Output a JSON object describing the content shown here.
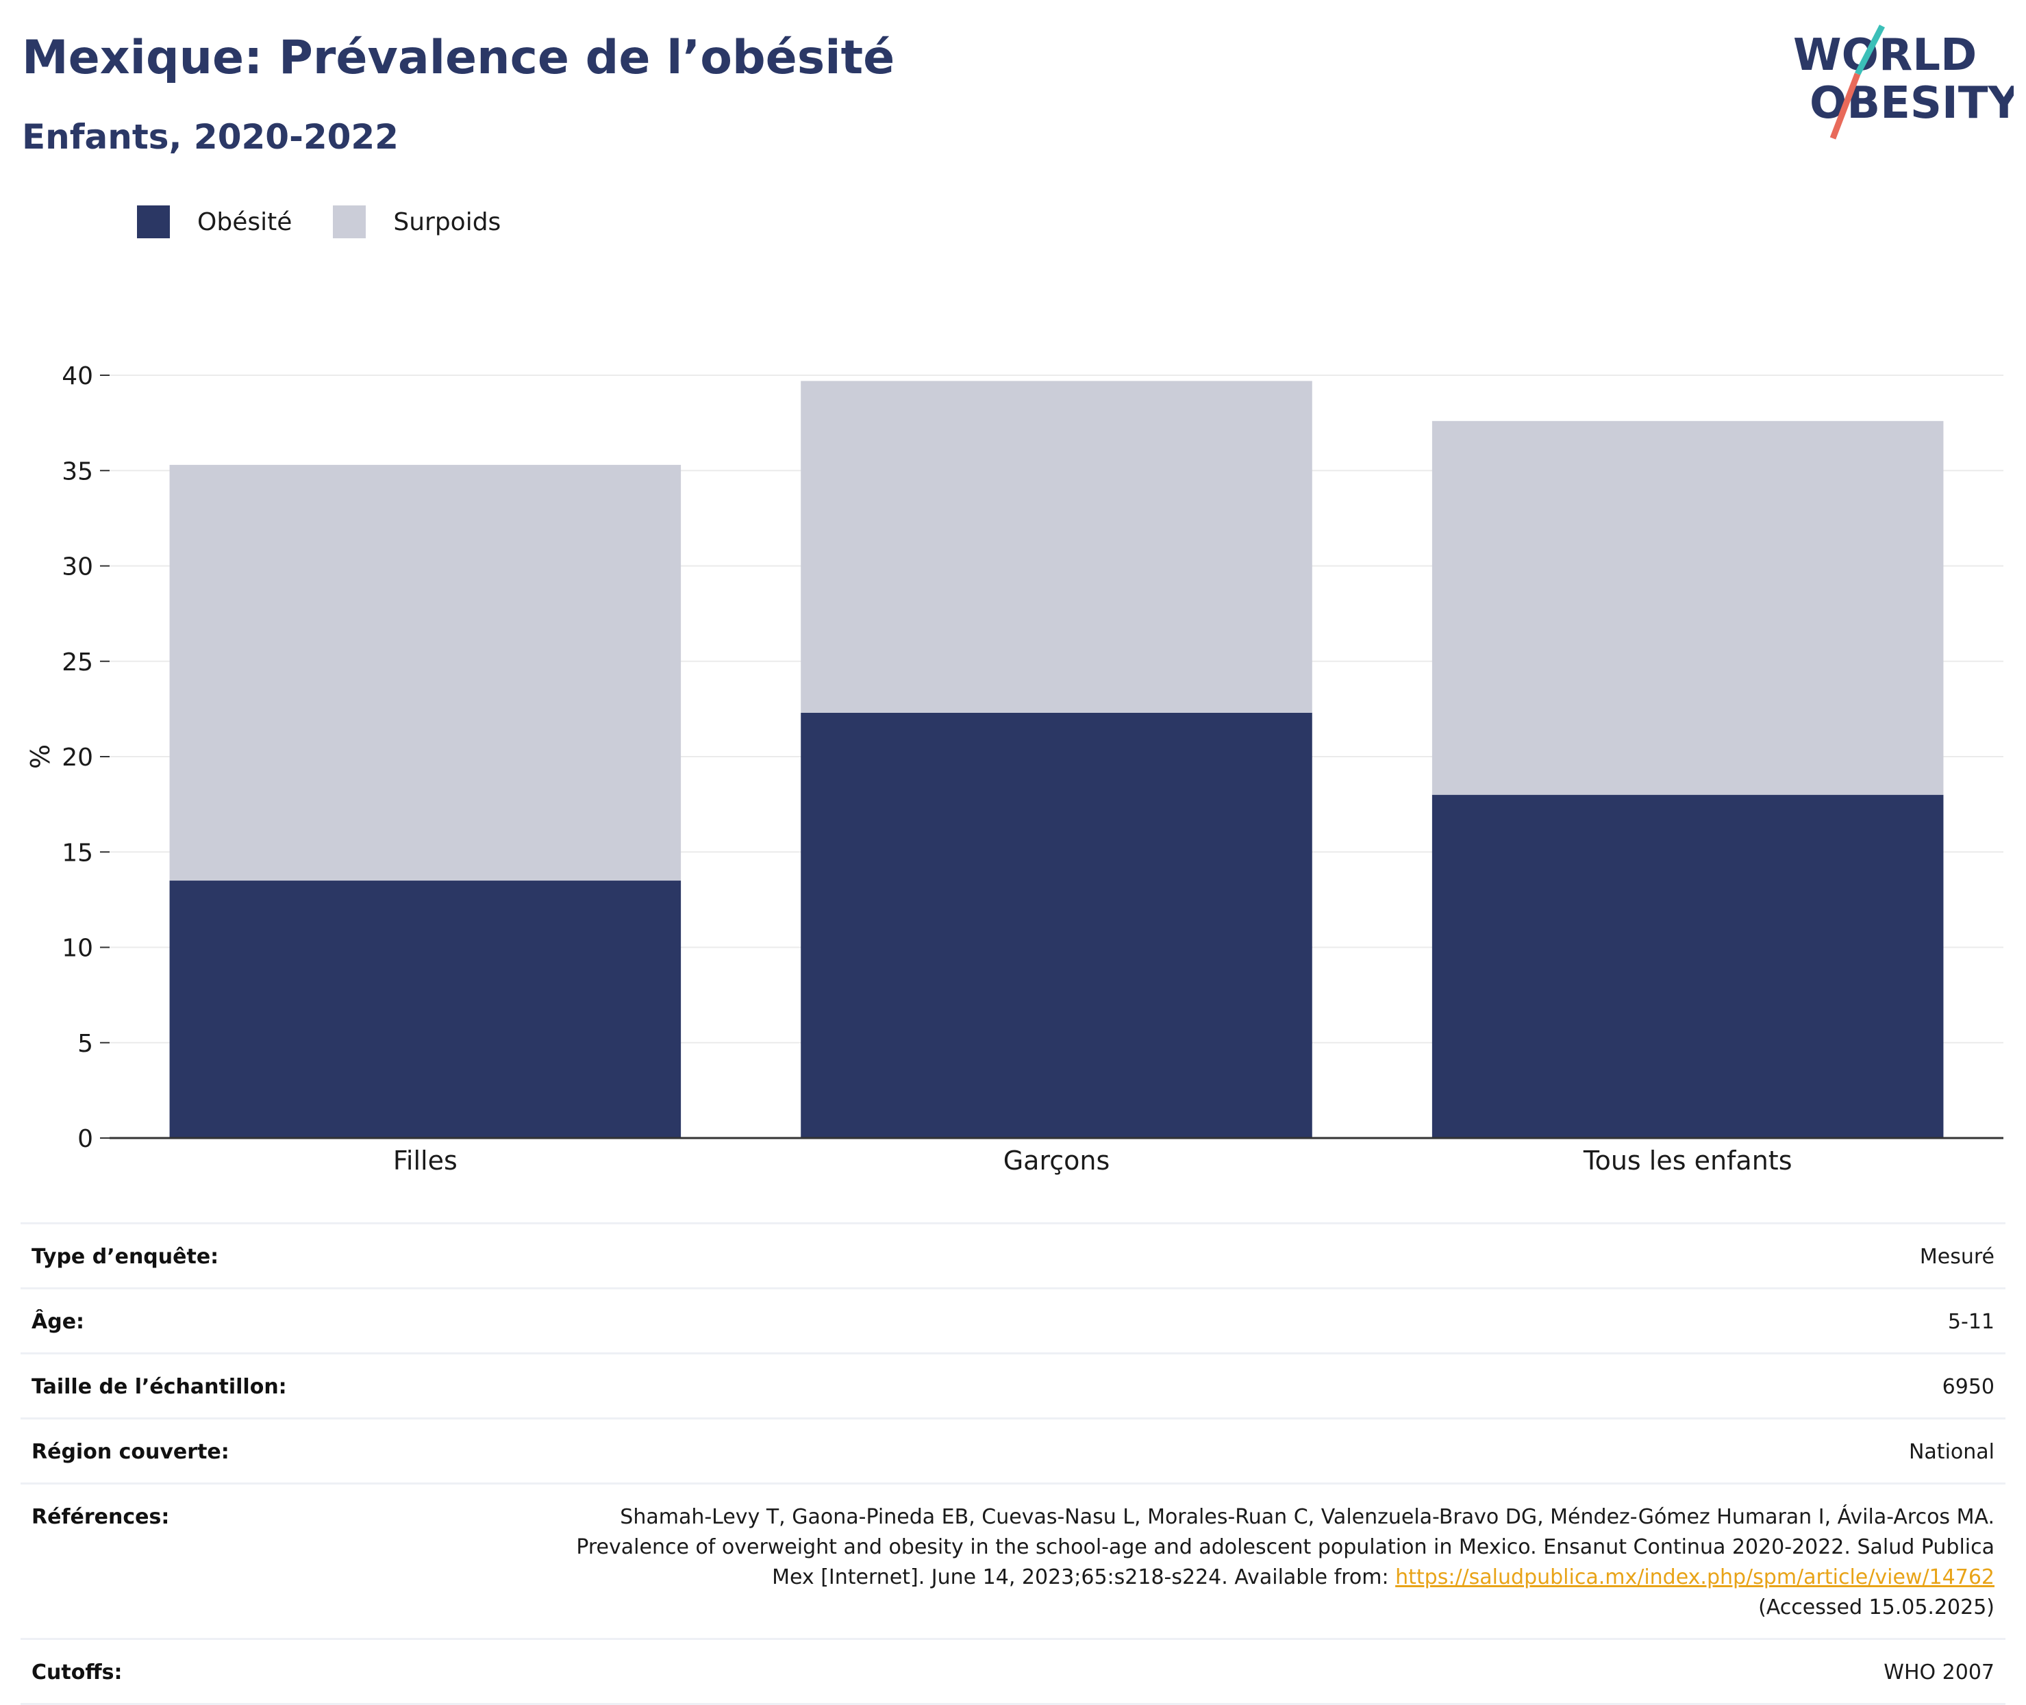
{
  "header": {
    "title": "Mexique: Prévalence de l’obésité",
    "subtitle": "Enfants, 2020-2022"
  },
  "logo": {
    "line1": "WORLD",
    "line2": "OBESITY"
  },
  "colors": {
    "obesity": "#2b3764",
    "overweight": "#cbcdd8",
    "title": "#2b3866",
    "link": "#e8a317"
  },
  "chart_data": {
    "type": "bar",
    "stacked": true,
    "categories": [
      "Filles",
      "Garçons",
      "Tous les enfants"
    ],
    "series": [
      {
        "name": "Obésité",
        "values": [
          13.5,
          22.3,
          18.0
        ]
      },
      {
        "name": "Surpoids",
        "values": [
          21.8,
          17.4,
          19.6
        ]
      }
    ],
    "xlabel": "",
    "ylabel": "%",
    "ylim": [
      0,
      40
    ],
    "yticks": [
      0,
      5,
      10,
      15,
      20,
      25,
      30,
      35,
      40
    ],
    "grid": true,
    "legend_position": "top-left"
  },
  "meta": {
    "survey_type": {
      "label": "Type d’enquête:",
      "value": "Mesuré"
    },
    "age": {
      "label": "Âge:",
      "value": "5-11"
    },
    "sample_size": {
      "label": "Taille de l’échantillon:",
      "value": "6950"
    },
    "region": {
      "label": "Région couverte:",
      "value": "National"
    },
    "references": {
      "label": "Références:",
      "text_before": "Shamah-Levy T, Gaona-Pineda EB, Cuevas-Nasu L, Morales-Ruan C, Valenzuela-Bravo DG, Méndez-Gómez Humaran I, Ávila-Arcos MA. Prevalence of overweight and obesity in the school-age and adolescent population in Mexico. Ensanut Continua 2020-2022. Salud Publica Mex [Internet]. June 14, 2023;65:s218-s224. Available from: ",
      "link": "https://saludpublica.mx/index.php/spm/article/view/14762",
      "text_after": "(Accessed 15.05.2025)"
    },
    "cutoffs": {
      "label": "Cutoffs:",
      "value": "WHO 2007"
    }
  }
}
